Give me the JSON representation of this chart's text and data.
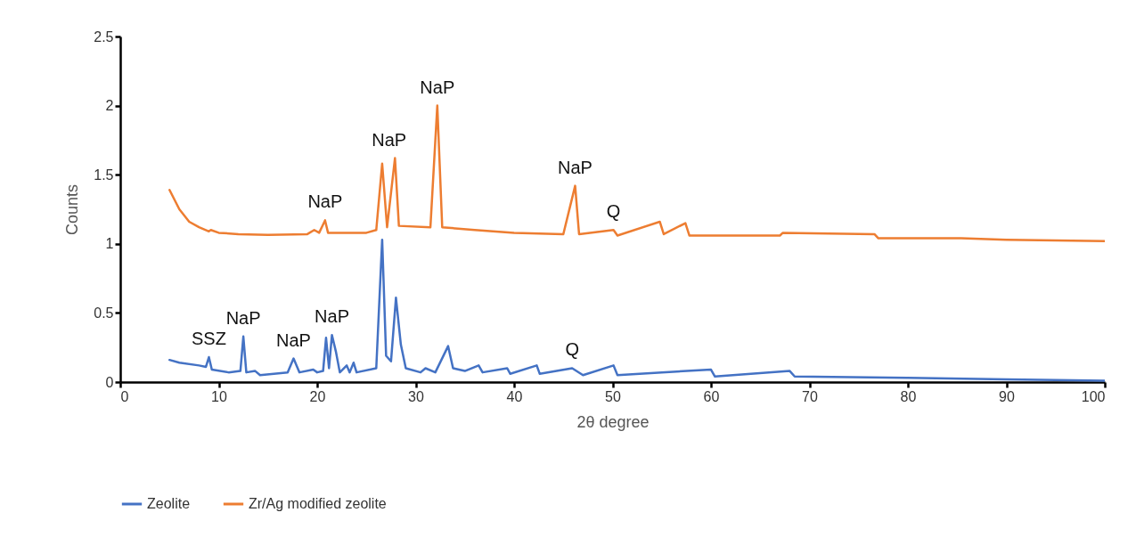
{
  "chart_data": {
    "type": "line",
    "xlabel": "2θ degree",
    "ylabel": "Counts",
    "xlim": [
      0,
      100
    ],
    "xticks": [
      0,
      10,
      20,
      30,
      40,
      50,
      60,
      70,
      80,
      90,
      100
    ],
    "ylim": [
      0,
      2.5
    ],
    "yticks": [
      0,
      0.5,
      1,
      1.5,
      2,
      2.5
    ],
    "grid": false,
    "legend": "bottom",
    "series": [
      {
        "name": "Zeolite",
        "color": "#4472c4",
        "x": [
          5,
          6,
          8,
          8.7,
          9,
          9.3,
          11,
          12.2,
          12.5,
          12.8,
          13.7,
          14.2,
          17,
          17.6,
          18.2,
          19.6,
          20,
          20.6,
          20.9,
          21.2,
          21.5,
          21.9,
          22.3,
          23,
          23.3,
          23.7,
          24,
          26,
          26.6,
          27,
          27.5,
          28,
          28.5,
          29,
          30.5,
          31,
          32,
          33.3,
          33.8,
          35,
          36.4,
          36.8,
          39.3,
          39.6,
          42.3,
          42.6,
          45.9,
          47,
          50.1,
          50.5,
          55,
          60,
          60.4,
          68,
          68.5,
          80,
          90,
          100
        ],
        "values": [
          0.16,
          0.14,
          0.12,
          0.11,
          0.18,
          0.09,
          0.07,
          0.08,
          0.33,
          0.07,
          0.08,
          0.05,
          0.07,
          0.17,
          0.07,
          0.09,
          0.07,
          0.08,
          0.32,
          0.1,
          0.34,
          0.22,
          0.07,
          0.12,
          0.07,
          0.14,
          0.07,
          0.1,
          1.03,
          0.19,
          0.15,
          0.61,
          0.27,
          0.1,
          0.07,
          0.1,
          0.07,
          0.26,
          0.1,
          0.08,
          0.12,
          0.07,
          0.1,
          0.06,
          0.12,
          0.06,
          0.1,
          0.05,
          0.12,
          0.05,
          0.07,
          0.09,
          0.04,
          0.08,
          0.04,
          0.03,
          0.02,
          0.01
        ]
      },
      {
        "name": "Zr/Ag modified zeolite",
        "color": "#ed7d31",
        "x": [
          5,
          6,
          7,
          8,
          9,
          9.2,
          10,
          12,
          15,
          19,
          19.7,
          20.2,
          20.8,
          21.1,
          25,
          26,
          26.6,
          27.1,
          27.9,
          28.3,
          31.5,
          32.2,
          32.7,
          36,
          40,
          45,
          46.2,
          46.6,
          50.1,
          50.5,
          54.8,
          55.2,
          57.4,
          57.8,
          67,
          67.3,
          76.6,
          77,
          85.4,
          90,
          100
        ],
        "values": [
          1.39,
          1.25,
          1.16,
          1.12,
          1.09,
          1.1,
          1.08,
          1.07,
          1.065,
          1.07,
          1.1,
          1.08,
          1.17,
          1.08,
          1.08,
          1.1,
          1.58,
          1.12,
          1.62,
          1.13,
          1.12,
          2.0,
          1.12,
          1.1,
          1.08,
          1.07,
          1.42,
          1.07,
          1.1,
          1.06,
          1.16,
          1.07,
          1.15,
          1.06,
          1.06,
          1.08,
          1.07,
          1.04,
          1.04,
          1.03,
          1.02
        ]
      }
    ],
    "annotations": [
      {
        "text": "SSZ",
        "x": 9,
        "y": 0.18
      },
      {
        "text": "NaP",
        "x": 12.5,
        "y": 0.33
      },
      {
        "text": "NaP",
        "x": 17.6,
        "y": 0.17
      },
      {
        "text": "NaP",
        "x": 21.5,
        "y": 0.34
      },
      {
        "text": "Q",
        "x": 45.9,
        "y": 0.1
      },
      {
        "text": "NaP",
        "x": 20.8,
        "y": 1.17
      },
      {
        "text": "NaP",
        "x": 27.3,
        "y": 1.62
      },
      {
        "text": "NaP",
        "x": 32.2,
        "y": 2.0
      },
      {
        "text": "NaP",
        "x": 46.2,
        "y": 1.42
      },
      {
        "text": "Q",
        "x": 50.1,
        "y": 1.1
      }
    ]
  }
}
